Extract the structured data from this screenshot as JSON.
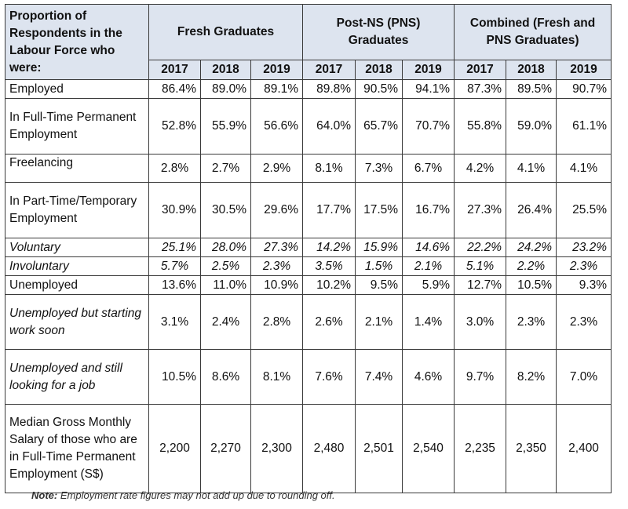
{
  "header": {
    "label_col": "Proportion of Respondents in the Labour Force who were:",
    "groups": [
      "Fresh Graduates",
      "Post-NS (PNS) Graduates",
      "Combined (Fresh and PNS Graduates)"
    ],
    "years": [
      "2017",
      "2018",
      "2019",
      "2017",
      "2018",
      "2019",
      "2017",
      "2018",
      "2019"
    ]
  },
  "rows": [
    {
      "label": "Employed",
      "values": [
        "86.4%",
        "89.0%",
        "89.1%",
        "89.8%",
        "90.5%",
        "94.1%",
        "87.3%",
        "89.5%",
        "90.7%"
      ]
    },
    {
      "label": "In Full-Time Permanent Employment",
      "values": [
        "52.8%",
        "55.9%",
        "56.6%",
        "64.0%",
        "65.7%",
        "70.7%",
        "55.8%",
        "59.0%",
        "61.1%"
      ]
    },
    {
      "label": "Freelancing",
      "values": [
        "2.8%",
        "2.7%",
        "2.9%",
        "8.1%",
        "7.3%",
        "6.7%",
        "4.2%",
        "4.1%",
        "4.1%"
      ]
    },
    {
      "label": "In Part-Time/Temporary Employment",
      "values": [
        "30.9%",
        "30.5%",
        "29.6%",
        "17.7%",
        "17.5%",
        "16.7%",
        "27.3%",
        "26.4%",
        "25.5%"
      ]
    },
    {
      "label": "Voluntary",
      "values": [
        "25.1%",
        "28.0%",
        "27.3%",
        "14.2%",
        "15.9%",
        "14.6%",
        "22.2%",
        "24.2%",
        "23.2%"
      ]
    },
    {
      "label": "Involuntary",
      "values": [
        "5.7%",
        "2.5%",
        "2.3%",
        "3.5%",
        "1.5%",
        "2.1%",
        "5.1%",
        "2.2%",
        "2.3%"
      ]
    },
    {
      "label": "Unemployed",
      "values": [
        "13.6%",
        "11.0%",
        "10.9%",
        "10.2%",
        "9.5%",
        "5.9%",
        "12.7%",
        "10.5%",
        "9.3%"
      ]
    },
    {
      "label": "Unemployed but starting work soon",
      "values": [
        "3.1%",
        "2.4%",
        "2.8%",
        "2.6%",
        "2.1%",
        "1.4%",
        "3.0%",
        "2.3%",
        "2.3%"
      ]
    },
    {
      "label": "Unemployed and still looking for a job",
      "values": [
        "10.5%",
        "8.6%",
        "8.1%",
        "7.6%",
        "7.4%",
        "4.6%",
        "9.7%",
        "8.2%",
        "7.0%"
      ]
    },
    {
      "label": "Median Gross Monthly Salary of those who are in Full-Time Permanent Employment (S$)",
      "values": [
        "2,200",
        "2,270",
        "2,300",
        "2,480",
        "2,501",
        "2,540",
        "2,235",
        "2,350",
        "2,400"
      ]
    }
  ],
  "note": {
    "key": "Note:",
    "text": "Employment rate figures may not add up due to rounding off."
  },
  "colors": {
    "header_bg": "#dde4ef",
    "border": "#3a3a3a"
  }
}
